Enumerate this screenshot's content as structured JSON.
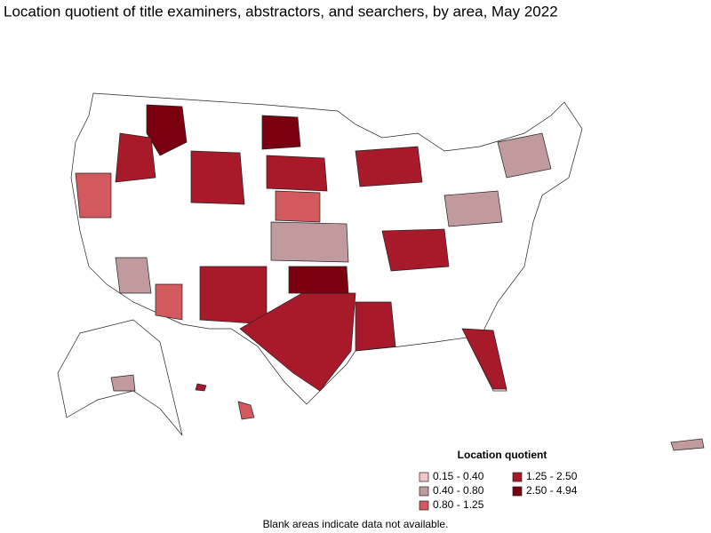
{
  "title": "Location quotient of title examiners, abstractors, and searchers, by area, May 2022",
  "legend": {
    "title": "Location quotient",
    "items": [
      {
        "label": "0.15 - 0.40",
        "color": "#f4c6c8"
      },
      {
        "label": "0.40 - 0.80",
        "color": "#c09a9c"
      },
      {
        "label": "0.80 - 1.25",
        "color": "#d2595e"
      },
      {
        "label": "1.25 - 2.50",
        "color": "#a8192a"
      },
      {
        "label": "2.50 - 4.94",
        "color": "#7a0010"
      }
    ]
  },
  "note": "Blank areas indicate data not available."
}
